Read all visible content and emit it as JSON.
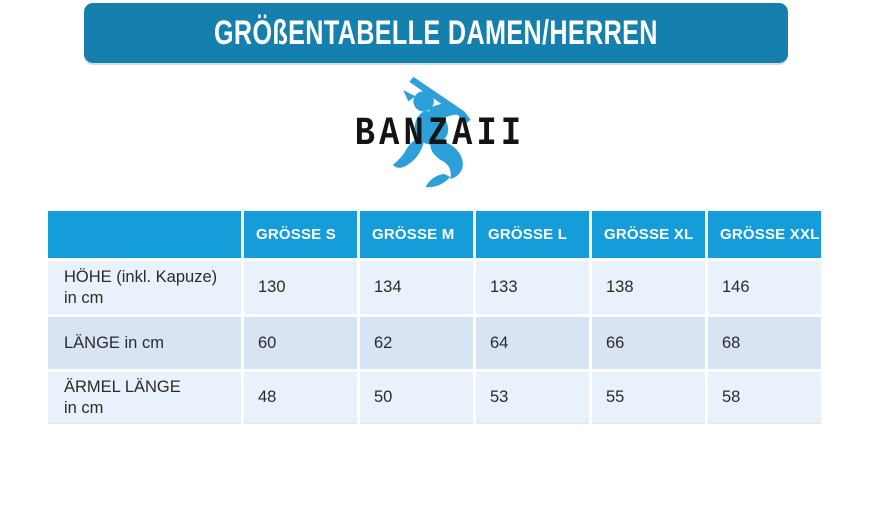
{
  "banner": {
    "title": "GRÖßENTABELLE DAMEN/HERREN"
  },
  "logo": {
    "brand": "BANZAII",
    "icon": "ninja-with-sword-icon"
  },
  "table": {
    "columns": [
      "GRÖSSE S",
      "GRÖSSE M",
      "GRÖSSE L",
      "GRÖSSE XL",
      "GRÖSSE XXL"
    ],
    "rows": [
      {
        "label": [
          "HÖHE (inkl. Kapuze)",
          "in cm"
        ],
        "values": [
          "130",
          "134",
          "133",
          "138",
          "146"
        ]
      },
      {
        "label": [
          "LÄNGE in cm"
        ],
        "values": [
          "60",
          "62",
          "64",
          "66",
          "68"
        ]
      },
      {
        "label": [
          "ÄRMEL LÄNGE",
          "in cm"
        ],
        "values": [
          "48",
          "50",
          "53",
          "55",
          "58"
        ]
      }
    ]
  },
  "colors": {
    "banner_bg": "#1580ae",
    "table_header_bg": "#149dd9",
    "row_light_bg": "#e9f1fb",
    "row_dark_bg": "#d8e4f4",
    "ninja_blue": "#2da0da",
    "title_text": "#ffffff",
    "body_text": "#2b2b2b",
    "brand_text": "#141414"
  }
}
